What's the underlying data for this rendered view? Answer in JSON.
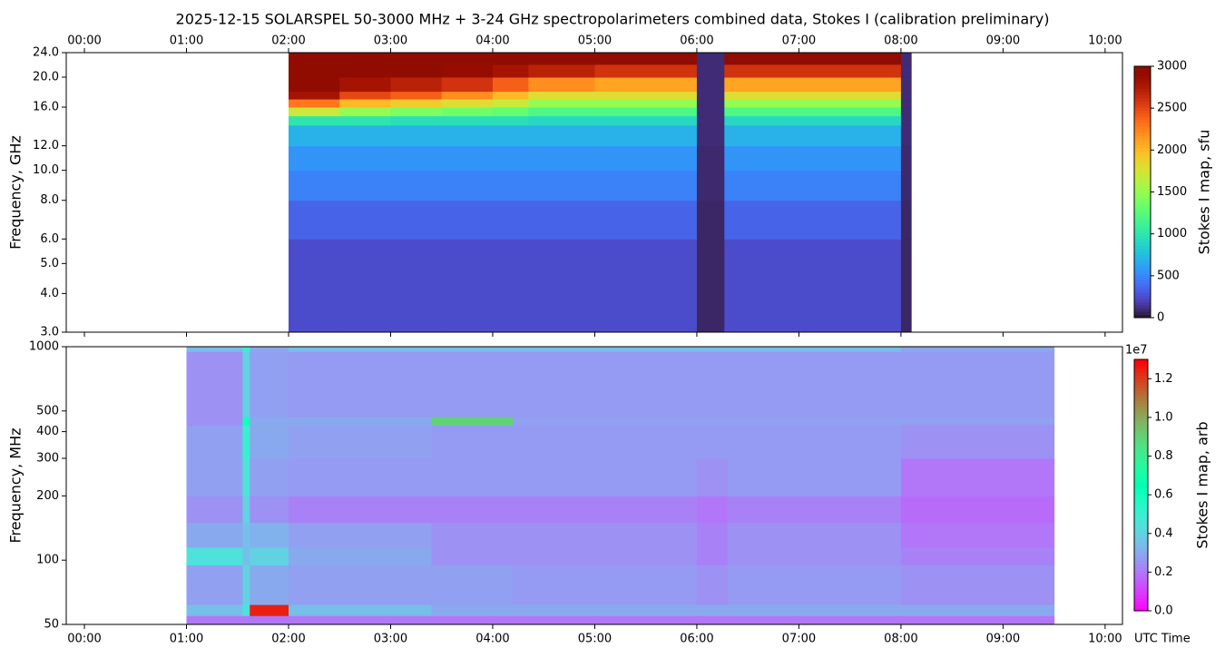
{
  "chart_data": [
    {
      "type": "heatmap",
      "title": "2025-12-15  SOLARSPEL  50-3000 MHz  +  3-24 GHz  spectropolarimeters combined data,  Stokes I  (calibration preliminary)",
      "ylabel": "Frequency, GHz",
      "colorbar_label": "Stokes I map, sfu",
      "colormap": "turbo",
      "ylog": true,
      "xlim": [
        -0.178,
        10.17
      ],
      "ylim": [
        3,
        24
      ],
      "clim": [
        0,
        3000
      ],
      "xticks": [
        {
          "value": 0,
          "label": "00:00"
        },
        {
          "value": 1,
          "label": "01:00"
        },
        {
          "value": 2,
          "label": "02:00"
        },
        {
          "value": 3,
          "label": "03:00"
        },
        {
          "value": 4,
          "label": "04:00"
        },
        {
          "value": 5,
          "label": "05:00"
        },
        {
          "value": 6,
          "label": "06:00"
        },
        {
          "value": 7,
          "label": "07:00"
        },
        {
          "value": 8,
          "label": "08:00"
        },
        {
          "value": 9,
          "label": "09:00"
        },
        {
          "value": 10,
          "label": "10:00"
        }
      ],
      "yticks": [
        {
          "value": 3,
          "label": "3.0"
        },
        {
          "value": 4,
          "label": "4.0"
        },
        {
          "value": 5,
          "label": "5.0"
        },
        {
          "value": 6,
          "label": "6.0"
        },
        {
          "value": 8,
          "label": "8.0"
        },
        {
          "value": 10,
          "label": "10.0"
        },
        {
          "value": 12,
          "label": "12.0"
        },
        {
          "value": 16,
          "label": "16.0"
        },
        {
          "value": 20,
          "label": "20.0"
        },
        {
          "value": 24,
          "label": "24.0"
        }
      ],
      "cticks": [
        0,
        500,
        1000,
        1500,
        2000,
        2500,
        3000
      ],
      "x_edges": [
        2.0,
        2.5,
        3.0,
        3.5,
        4.0,
        4.35,
        5.0,
        6.0,
        6.27,
        7.0,
        8.0,
        8.1
      ],
      "y_edges": [
        3,
        6,
        8,
        10,
        12,
        14,
        15,
        16,
        17,
        18,
        20,
        22,
        24
      ],
      "z": [
        [
          250,
          250,
          250,
          250,
          250,
          250,
          250,
          80,
          250,
          250,
          80
        ],
        [
          350,
          350,
          350,
          350,
          350,
          350,
          350,
          80,
          350,
          350,
          80
        ],
        [
          480,
          480,
          480,
          480,
          480,
          480,
          480,
          90,
          480,
          480,
          90
        ],
        [
          560,
          560,
          560,
          560,
          560,
          560,
          560,
          90,
          560,
          560,
          90
        ],
        [
          700,
          700,
          700,
          700,
          700,
          700,
          700,
          100,
          700,
          700,
          100
        ],
        [
          1000,
          1000,
          950,
          950,
          950,
          900,
          900,
          100,
          900,
          900,
          100
        ],
        [
          1700,
          1500,
          1400,
          1350,
          1300,
          1200,
          1200,
          100,
          1200,
          1200,
          100
        ],
        [
          2300,
          2000,
          1900,
          1800,
          1700,
          1500,
          1500,
          100,
          1500,
          1500,
          100
        ],
        [
          2800,
          2500,
          2400,
          2200,
          2000,
          1800,
          1800,
          100,
          1800,
          1800,
          100
        ],
        [
          3000,
          2800,
          2700,
          2600,
          2400,
          2200,
          2100,
          100,
          2100,
          2100,
          100
        ],
        [
          3000,
          3000,
          3000,
          2900,
          2800,
          2700,
          2600,
          100,
          2600,
          2600,
          100
        ],
        [
          3000,
          3000,
          3000,
          3000,
          3000,
          3000,
          3000,
          100,
          3000,
          3000,
          100
        ]
      ]
    },
    {
      "type": "heatmap",
      "ylabel": "Frequency, MHz",
      "xlabel": "UTC Time",
      "colorbar_label": "Stokes I map, arb",
      "colorbar_offset": "1e7",
      "colormap": "rainbow",
      "ylog": true,
      "xlim": [
        -0.178,
        10.17
      ],
      "ylim": [
        50,
        1000
      ],
      "clim": [
        0,
        1.3
      ],
      "xticks": [
        {
          "value": 0,
          "label": "00:00"
        },
        {
          "value": 1,
          "label": "01:00"
        },
        {
          "value": 2,
          "label": "02:00"
        },
        {
          "value": 3,
          "label": "03:00"
        },
        {
          "value": 4,
          "label": "04:00"
        },
        {
          "value": 5,
          "label": "05:00"
        },
        {
          "value": 6,
          "label": "06:00"
        },
        {
          "value": 7,
          "label": "07:00"
        },
        {
          "value": 8,
          "label": "08:00"
        },
        {
          "value": 9,
          "label": "09:00"
        },
        {
          "value": 10,
          "label": "10:00"
        }
      ],
      "yticks": [
        50,
        100,
        200,
        300,
        400,
        500,
        1000
      ],
      "cticks": [
        {
          "value": 0,
          "label": "0.0"
        },
        {
          "value": 0.2,
          "label": "0.2"
        },
        {
          "value": 0.4,
          "label": "0.4"
        },
        {
          "value": 0.6,
          "label": "0.6"
        },
        {
          "value": 0.8,
          "label": "0.8"
        },
        {
          "value": 1,
          "label": "1.0"
        },
        {
          "value": 1.2,
          "label": "1.2"
        }
      ],
      "x_edges": [
        1.0,
        1.55,
        1.62,
        2.0,
        3.4,
        4.2,
        6.0,
        6.3,
        8.0,
        9.5
      ],
      "y_edges": [
        50,
        55,
        62,
        95,
        115,
        150,
        200,
        300,
        430,
        470,
        950,
        1000
      ],
      "z": [
        [
          0.2,
          0.2,
          0.2,
          0.2,
          0.2,
          0.2,
          0.2,
          0.2,
          0.2
        ],
        [
          0.35,
          0.45,
          1.25,
          0.35,
          0.3,
          0.3,
          0.3,
          0.3,
          0.3
        ],
        [
          0.28,
          0.4,
          0.3,
          0.28,
          0.28,
          0.27,
          0.25,
          0.27,
          0.25
        ],
        [
          0.45,
          0.35,
          0.4,
          0.3,
          0.25,
          0.25,
          0.22,
          0.25,
          0.22
        ],
        [
          0.3,
          0.35,
          0.32,
          0.28,
          0.25,
          0.25,
          0.22,
          0.25,
          0.2
        ],
        [
          0.25,
          0.4,
          0.25,
          0.22,
          0.22,
          0.22,
          0.2,
          0.22,
          0.18
        ],
        [
          0.28,
          0.45,
          0.28,
          0.27,
          0.27,
          0.27,
          0.25,
          0.27,
          0.2
        ],
        [
          0.28,
          0.5,
          0.3,
          0.28,
          0.27,
          0.27,
          0.27,
          0.27,
          0.25
        ],
        [
          0.25,
          0.6,
          0.3,
          0.3,
          0.9,
          0.28,
          0.28,
          0.28,
          0.28
        ],
        [
          0.25,
          0.4,
          0.28,
          0.27,
          0.27,
          0.27,
          0.27,
          0.27,
          0.27
        ],
        [
          0.35,
          0.5,
          0.3,
          0.35,
          0.35,
          0.35,
          0.35,
          0.35,
          0.3
        ]
      ]
    }
  ]
}
